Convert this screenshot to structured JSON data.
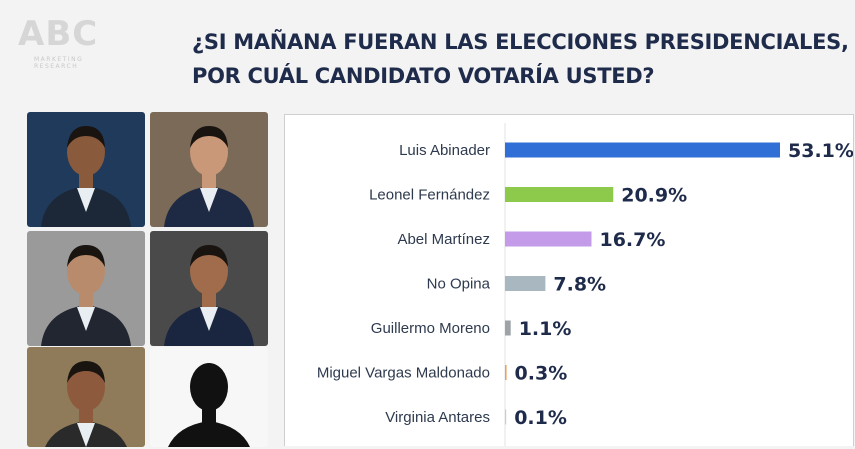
{
  "logo": {
    "text": "ABC",
    "sub_line1": "MARKETING",
    "sub_line2": "RESEARCH"
  },
  "title": {
    "line1": "¿SI MAÑANA FUERAN LAS ELECCIONES PRESIDENCIALES,",
    "line2": "POR CUÁL CANDIDATO VOTARÍA USTED?"
  },
  "colors": {
    "title": "#1f2b4a",
    "series": [
      "#2f6fd6",
      "#8dc94a",
      "#c39be8",
      "#a9b7c0",
      "#9ea3a8",
      "#e8a05a",
      "#c9cdd1"
    ]
  },
  "photos": [
    {
      "name": "candidate-photo-1",
      "bg": "#203a5c",
      "suit": "#1c2738",
      "skin": "#8a5a3c"
    },
    {
      "name": "candidate-photo-2",
      "bg": "#7b6a58",
      "suit": "#1e2a44",
      "skin": "#c99878"
    },
    {
      "name": "candidate-photo-3",
      "bg": "#9a9a9a",
      "suit": "#222630",
      "skin": "#b88b6c"
    },
    {
      "name": "candidate-photo-4",
      "bg": "#4a4a4a",
      "suit": "#1a2540",
      "skin": "#a16c4c"
    },
    {
      "name": "candidate-photo-5",
      "bg": "#8f7a5a",
      "suit": "#2a2a2a",
      "skin": "#8e5a3e"
    },
    {
      "name": "silhouette-icon",
      "bg": "#f7f7f7",
      "suit": "#111111",
      "skin": "#111111"
    }
  ],
  "chart_data": {
    "type": "bar",
    "orientation": "horizontal",
    "categories": [
      "Luis Abinader",
      "Leonel Fernández",
      "Abel Martínez",
      "No Opina",
      "Guillermo Moreno",
      "Miguel Vargas Maldonado",
      "Virginia Antares"
    ],
    "values": [
      53.1,
      20.9,
      16.7,
      7.8,
      1.1,
      0.3,
      0.1
    ],
    "labels": [
      "53.1%",
      "20.9%",
      "16.7%",
      "7.8%",
      "1.1%",
      "0.3%",
      "0.1%"
    ],
    "title": "",
    "xlabel": "",
    "ylabel": "",
    "xlim": [
      0,
      53.1
    ],
    "grid": false,
    "legend": "none"
  }
}
